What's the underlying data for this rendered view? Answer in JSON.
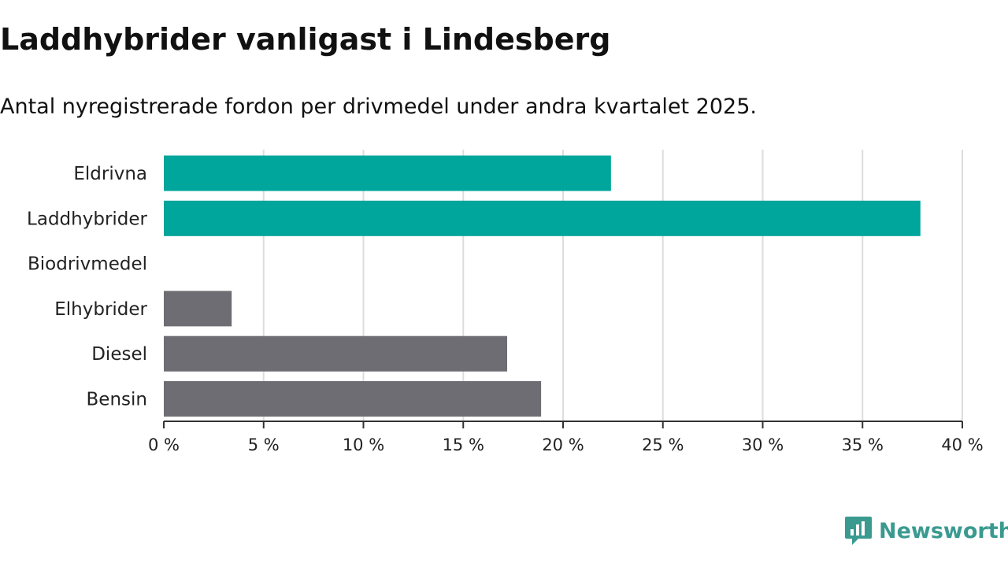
{
  "header": {
    "title": "Laddhybrider vanligast i Lindesberg",
    "subtitle": "Antal nyregistrerade fordon per drivmedel under andra kvartalet 2025."
  },
  "brand": {
    "logo_text": "Newsworthy",
    "logo_icon": "bar-chart-logo-icon",
    "color": "#3a9a90"
  },
  "colors": {
    "highlight": "#00a59b",
    "default": "#6e6d73",
    "grid": "#dddddd",
    "axis": "#333333"
  },
  "chart_data": {
    "type": "bar",
    "orientation": "horizontal",
    "categories": [
      "Eldrivna",
      "Laddhybrider",
      "Biodrivmedel",
      "Elhybrider",
      "Diesel",
      "Bensin"
    ],
    "values": [
      22.4,
      37.9,
      0,
      3.4,
      17.2,
      18.9
    ],
    "highlighted": [
      true,
      true,
      false,
      false,
      false,
      false
    ],
    "x_ticks": [
      "0 %",
      "5 %",
      "10 %",
      "15 %",
      "20 %",
      "25 %",
      "30 %",
      "35 %",
      "40 %"
    ],
    "xlim": [
      0,
      40
    ],
    "grid": true
  }
}
